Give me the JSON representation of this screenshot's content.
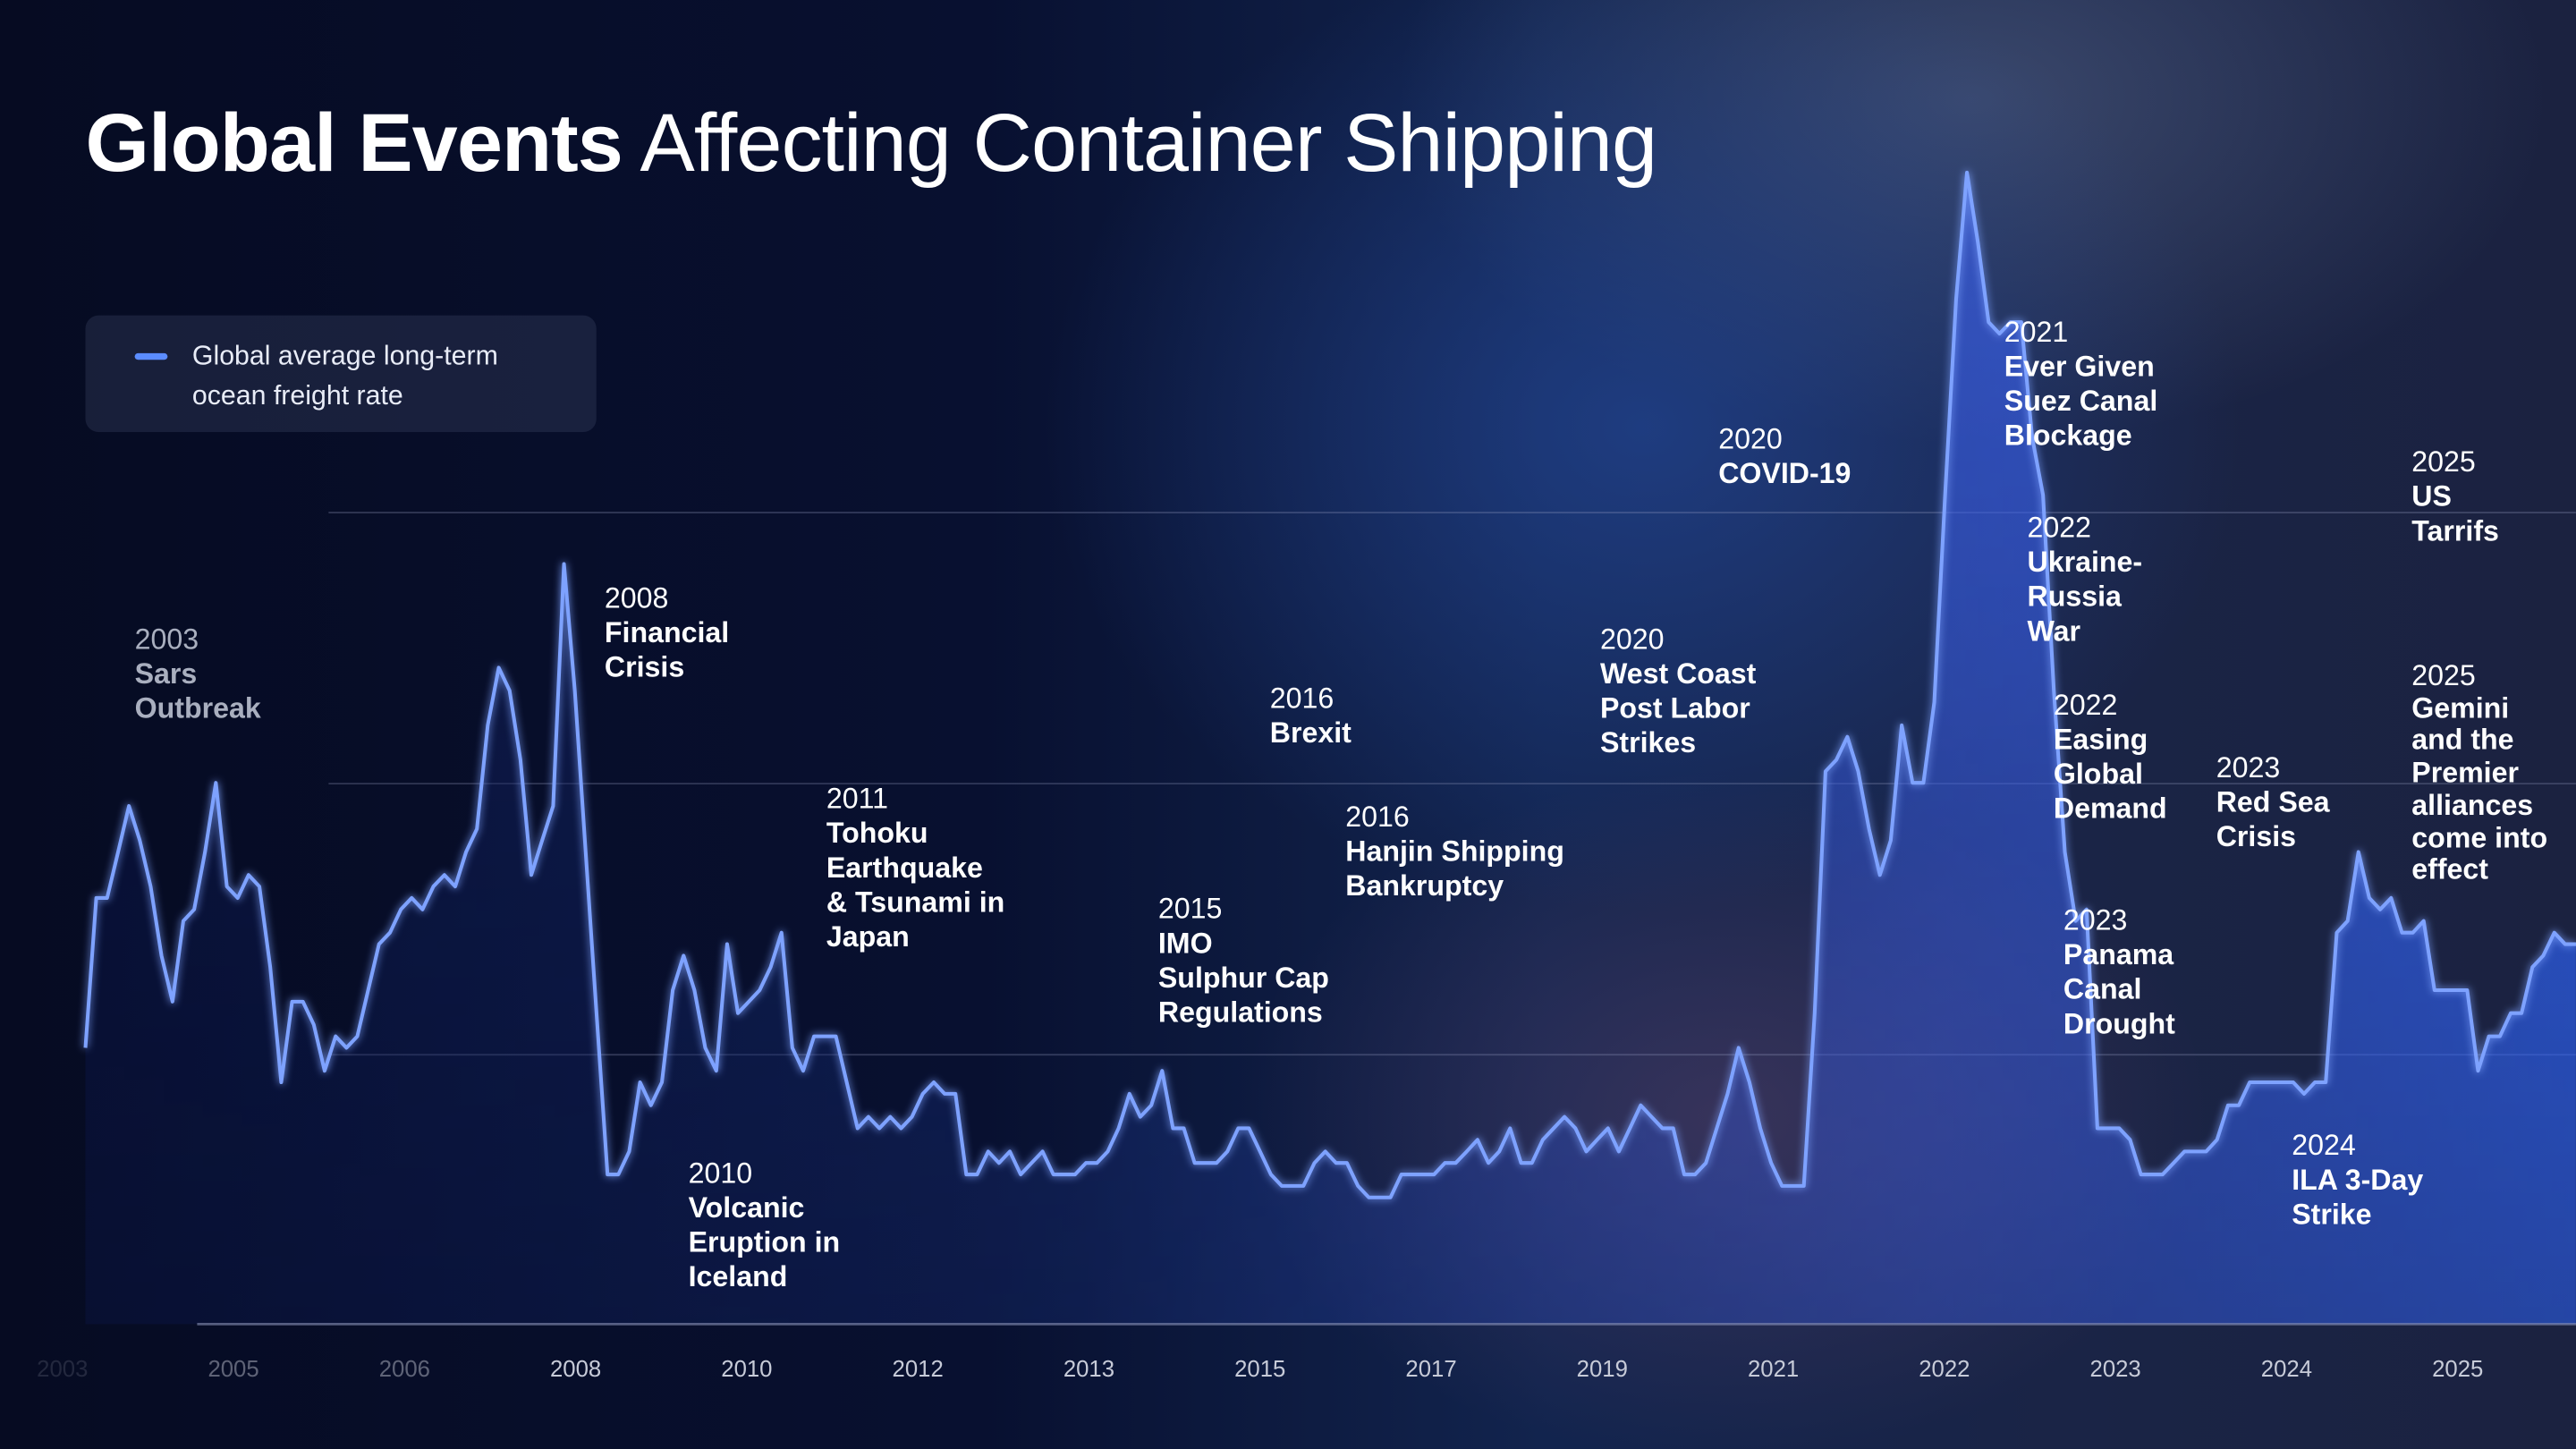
{
  "title": {
    "bold": "Global Events",
    "light": "Affecting Container Shipping"
  },
  "legend": {
    "label": "Global average long-term ocean freight rate",
    "color": "#5b8cff"
  },
  "colors": {
    "line": "#7ea2ff",
    "area_top": "#2f66ff",
    "background": "#060b20"
  },
  "chart_data": {
    "type": "area",
    "title": "Global Events Affecting Container Shipping",
    "xlabel": "",
    "ylabel": "",
    "y_axis_labels_shown": false,
    "grid": "horizontal",
    "legend_position": "top-left",
    "x_tick_labels": [
      "2003",
      "2005",
      "2006",
      "2008",
      "2010",
      "2012",
      "2013",
      "2015",
      "2017",
      "2019",
      "2021",
      "2022",
      "2023",
      "2024",
      "2025"
    ],
    "series": [
      {
        "name": "Global average long-term ocean freight rate",
        "values": [
          24,
          37,
          37,
          41,
          45,
          42,
          38,
          32,
          28,
          35,
          36,
          41,
          47,
          38,
          37,
          39,
          38,
          31,
          21,
          28,
          28,
          26,
          22,
          25,
          24,
          25,
          29,
          33,
          34,
          36,
          37,
          36,
          38,
          39,
          38,
          41,
          43,
          52,
          57,
          55,
          49,
          39,
          42,
          45,
          66,
          55,
          41,
          27,
          13,
          13,
          15,
          21,
          19,
          21,
          29,
          32,
          29,
          24,
          22,
          33,
          27,
          28,
          29,
          31,
          34,
          24,
          22,
          25,
          25,
          25,
          21,
          17,
          18,
          17,
          18,
          17,
          18,
          20,
          21,
          20,
          20,
          13,
          13,
          15,
          14,
          15,
          13,
          14,
          15,
          13,
          13,
          13,
          14,
          14,
          15,
          17,
          20,
          18,
          19,
          22,
          17,
          17,
          14,
          14,
          14,
          15,
          17,
          17,
          15,
          13,
          12,
          12,
          12,
          14,
          15,
          14,
          14,
          12,
          11,
          11,
          11,
          13,
          13,
          13,
          13,
          14,
          14,
          15,
          16,
          14,
          15,
          17,
          14,
          14,
          16,
          17,
          18,
          17,
          15,
          16,
          17,
          15,
          17,
          19,
          18,
          17,
          17,
          13,
          13,
          14,
          17,
          20,
          24,
          21,
          17,
          14,
          12,
          12,
          12,
          27,
          48,
          49,
          51,
          48,
          43,
          39,
          42,
          52,
          47,
          47,
          54,
          72,
          89,
          100,
          94,
          87,
          86,
          87,
          87,
          77,
          72,
          55,
          41,
          35,
          36,
          17,
          17,
          17,
          16,
          13,
          13,
          13,
          14,
          15,
          15,
          15,
          16,
          19,
          19,
          21,
          21,
          21,
          21,
          21,
          20,
          21,
          21,
          34,
          35,
          41,
          37,
          36,
          37,
          34,
          34,
          35,
          29,
          29,
          29,
          29,
          22,
          25,
          25,
          27,
          27,
          31,
          32,
          34,
          33,
          33
        ]
      }
    ],
    "annotations": [
      {
        "year": "2003",
        "label": "Sars\nOutbreak"
      },
      {
        "year": "2008",
        "label": "Financial\nCrisis"
      },
      {
        "year": "2010",
        "label": "Volcanic\nEruption in\nIceland"
      },
      {
        "year": "2011",
        "label": "Tohoku\nEarthquake\n& Tsunami in\nJapan"
      },
      {
        "year": "2015",
        "label": "IMO\nSulphur Cap\nRegulations"
      },
      {
        "year": "2016",
        "label": "Brexit"
      },
      {
        "year": "2016",
        "label": "Hanjin Shipping\nBankruptcy"
      },
      {
        "year": "2020",
        "label": "West Coast\nPost Labor\nStrikes"
      },
      {
        "year": "2020",
        "label": "COVID-19"
      },
      {
        "year": "2021",
        "label": "Ever Given\nSuez Canal\nBlockage"
      },
      {
        "year": "2022",
        "label": "Ukraine-\nRussia\nWar"
      },
      {
        "year": "2022",
        "label": "Easing\nGlobal\nDemand"
      },
      {
        "year": "2023",
        "label": "Panama\nCanal\nDrought"
      },
      {
        "year": "2023",
        "label": "Red Sea\nCrisis"
      },
      {
        "year": "2024",
        "label": "ILA 3-Day\nStrike"
      },
      {
        "year": "2025",
        "label": "US\nTarrifs"
      },
      {
        "year": "2025",
        "label": "Gemini\nand the\nPremier\nalliances\ncome into\neffect"
      }
    ]
  }
}
